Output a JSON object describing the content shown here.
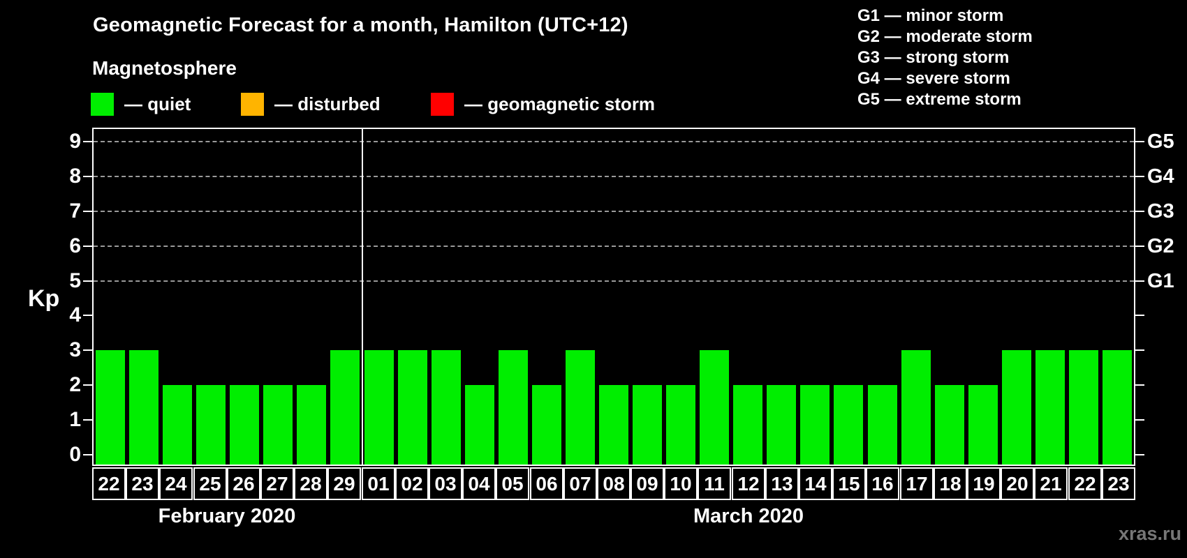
{
  "title": "Geomagnetic Forecast for a month, Hamilton (UTC+12)",
  "subtitle": "Magnetosphere",
  "legend": {
    "items": [
      {
        "key": "quiet",
        "label": "— quiet",
        "color": "#00ee00"
      },
      {
        "key": "disturbed",
        "label": "— disturbed",
        "color": "#ffb400"
      },
      {
        "key": "storm",
        "label": "— geomagnetic storm",
        "color": "#ff0000"
      }
    ]
  },
  "storm_scale_legend": [
    "G1 — minor storm",
    "G2 — moderate storm",
    "G3 — strong storm",
    "G4 — severe storm",
    "G5 — extreme storm"
  ],
  "watermark": "xras.ru",
  "chart_data": {
    "type": "bar",
    "ylabel_left": "Kp",
    "ylim": [
      0,
      9
    ],
    "yticks_left": [
      0,
      1,
      2,
      3,
      4,
      5,
      6,
      7,
      8,
      9
    ],
    "yticks_right": [
      {
        "kp": 5,
        "label": "G1"
      },
      {
        "kp": 6,
        "label": "G2"
      },
      {
        "kp": 7,
        "label": "G3"
      },
      {
        "kp": 8,
        "label": "G4"
      },
      {
        "kp": 9,
        "label": "G5"
      }
    ],
    "gridlines_at": [
      5,
      6,
      7,
      8,
      9
    ],
    "grid": "dashed-horizontal",
    "legend_position": "top",
    "bar_status_all": "quiet",
    "groups": [
      {
        "month_label": "February 2020",
        "days": [
          "22",
          "23",
          "24",
          "25",
          "26",
          "27",
          "28",
          "29"
        ],
        "values": [
          3,
          3,
          2,
          2,
          2,
          2,
          2,
          3
        ]
      },
      {
        "month_label": "March 2020",
        "days": [
          "01",
          "02",
          "03",
          "04",
          "05",
          "06",
          "07",
          "08",
          "09",
          "10",
          "11",
          "12",
          "13",
          "14",
          "15",
          "16",
          "17",
          "18",
          "19",
          "20",
          "21",
          "22",
          "23"
        ],
        "values": [
          3,
          3,
          3,
          2,
          3,
          2,
          3,
          2,
          2,
          2,
          3,
          2,
          2,
          2,
          2,
          2,
          3,
          2,
          2,
          3,
          3,
          3,
          3
        ]
      }
    ]
  }
}
